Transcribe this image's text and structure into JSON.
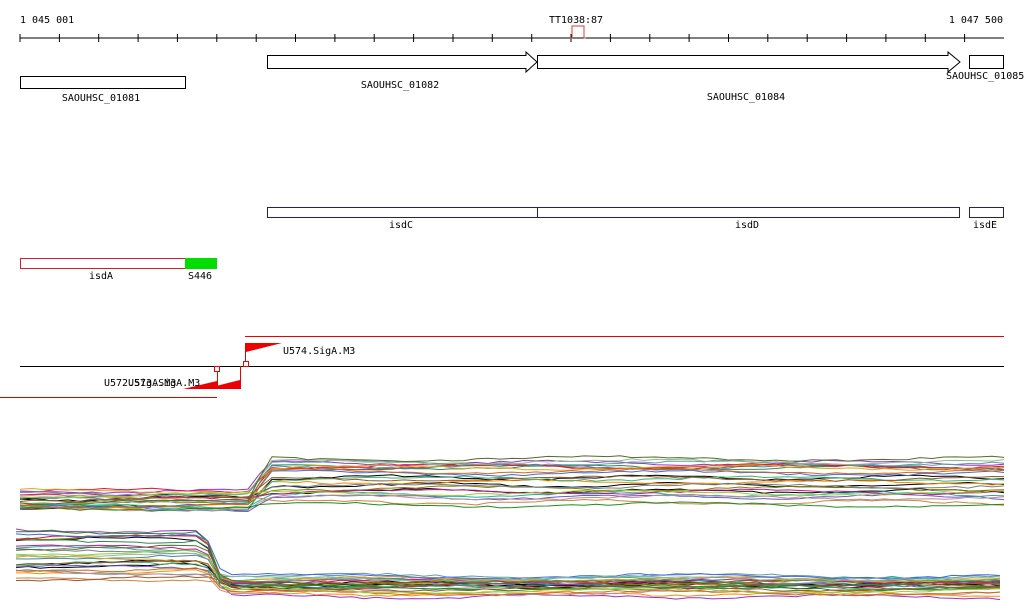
{
  "ruler": {
    "start_label": "1 045 001",
    "end_label": "1 047 500",
    "terminator_label": "TT103",
    "terminator_label_overlap": "8:87"
  },
  "genes": [
    {
      "id": "SAOUHSC_01081",
      "label": "SAOUHSC_01081",
      "strand": "-"
    },
    {
      "id": "SAOUHSC_01082",
      "label": "SAOUHSC_01082",
      "strand": "+"
    },
    {
      "id": "SAOUHSC_01084",
      "label": "SAOUHSC_01084",
      "strand": "+"
    },
    {
      "id": "SAOUHSC_01085",
      "label": "SAOUHSC_01085",
      "strand": "+"
    }
  ],
  "gene_names_forward": [
    {
      "id": "isdC",
      "label": "isdC"
    },
    {
      "id": "isdD",
      "label": "isdD"
    },
    {
      "id": "isdE",
      "label": "isdE"
    }
  ],
  "gene_names_reverse": [
    {
      "id": "isdA",
      "label": "isdA"
    },
    {
      "id": "S446",
      "label": "S446"
    }
  ],
  "promoters": [
    {
      "id": "U574",
      "label": "U574.SigA.M3",
      "strand": "+"
    },
    {
      "id": "U572",
      "label": "U572.SigA.M3",
      "strand": "-"
    },
    {
      "id": "U573",
      "label": "U573.SigA.M3",
      "strand": "-"
    }
  ],
  "colors": {
    "gene_outline": "#000000",
    "forward_feature": "#1a1aa6",
    "reverse_feature": "#d42020",
    "srna": "#00dd00",
    "promoter": "#ee0000",
    "baseline": "#000000"
  }
}
